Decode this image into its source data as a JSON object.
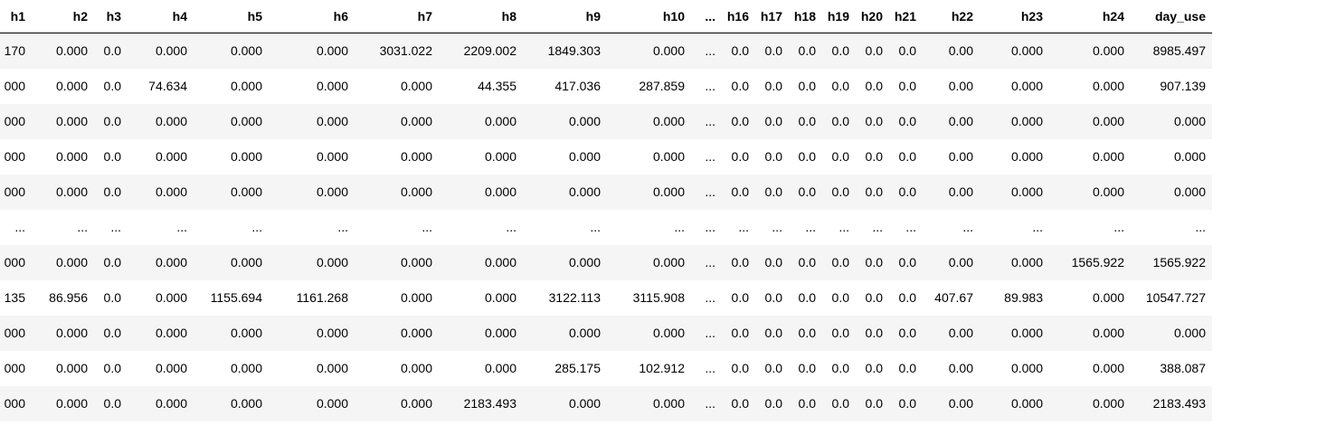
{
  "table": {
    "columns": [
      "h1",
      "h2",
      "h3",
      "h4",
      "h5",
      "h6",
      "h7",
      "h8",
      "h9",
      "h10",
      "...",
      "h16",
      "h17",
      "h18",
      "h19",
      "h20",
      "h21",
      "h22",
      "h23",
      "h24",
      "day_use"
    ],
    "rows": [
      [
        "170",
        "0.000",
        "0.0",
        "0.000",
        "0.000",
        "0.000",
        "3031.022",
        "2209.002",
        "1849.303",
        "0.000",
        "...",
        "0.0",
        "0.0",
        "0.0",
        "0.0",
        "0.0",
        "0.0",
        "0.00",
        "0.000",
        "0.000",
        "8985.497"
      ],
      [
        "000",
        "0.000",
        "0.0",
        "74.634",
        "0.000",
        "0.000",
        "0.000",
        "44.355",
        "417.036",
        "287.859",
        "...",
        "0.0",
        "0.0",
        "0.0",
        "0.0",
        "0.0",
        "0.0",
        "0.00",
        "0.000",
        "0.000",
        "907.139"
      ],
      [
        "000",
        "0.000",
        "0.0",
        "0.000",
        "0.000",
        "0.000",
        "0.000",
        "0.000",
        "0.000",
        "0.000",
        "...",
        "0.0",
        "0.0",
        "0.0",
        "0.0",
        "0.0",
        "0.0",
        "0.00",
        "0.000",
        "0.000",
        "0.000"
      ],
      [
        "000",
        "0.000",
        "0.0",
        "0.000",
        "0.000",
        "0.000",
        "0.000",
        "0.000",
        "0.000",
        "0.000",
        "...",
        "0.0",
        "0.0",
        "0.0",
        "0.0",
        "0.0",
        "0.0",
        "0.00",
        "0.000",
        "0.000",
        "0.000"
      ],
      [
        "000",
        "0.000",
        "0.0",
        "0.000",
        "0.000",
        "0.000",
        "0.000",
        "0.000",
        "0.000",
        "0.000",
        "...",
        "0.0",
        "0.0",
        "0.0",
        "0.0",
        "0.0",
        "0.0",
        "0.00",
        "0.000",
        "0.000",
        "0.000"
      ],
      [
        "...",
        "...",
        "...",
        "...",
        "...",
        "...",
        "...",
        "...",
        "...",
        "...",
        "...",
        "...",
        "...",
        "...",
        "...",
        "...",
        "...",
        "...",
        "...",
        "...",
        "..."
      ],
      [
        "000",
        "0.000",
        "0.0",
        "0.000",
        "0.000",
        "0.000",
        "0.000",
        "0.000",
        "0.000",
        "0.000",
        "...",
        "0.0",
        "0.0",
        "0.0",
        "0.0",
        "0.0",
        "0.0",
        "0.00",
        "0.000",
        "1565.922",
        "1565.922"
      ],
      [
        "135",
        "86.956",
        "0.0",
        "0.000",
        "1155.694",
        "1161.268",
        "0.000",
        "0.000",
        "3122.113",
        "3115.908",
        "...",
        "0.0",
        "0.0",
        "0.0",
        "0.0",
        "0.0",
        "0.0",
        "407.67",
        "89.983",
        "0.000",
        "10547.727"
      ],
      [
        "000",
        "0.000",
        "0.0",
        "0.000",
        "0.000",
        "0.000",
        "0.000",
        "0.000",
        "0.000",
        "0.000",
        "...",
        "0.0",
        "0.0",
        "0.0",
        "0.0",
        "0.0",
        "0.0",
        "0.00",
        "0.000",
        "0.000",
        "0.000"
      ],
      [
        "000",
        "0.000",
        "0.0",
        "0.000",
        "0.000",
        "0.000",
        "0.000",
        "0.000",
        "285.175",
        "102.912",
        "...",
        "0.0",
        "0.0",
        "0.0",
        "0.0",
        "0.0",
        "0.0",
        "0.00",
        "0.000",
        "0.000",
        "388.087"
      ],
      [
        "000",
        "0.000",
        "0.0",
        "0.000",
        "0.000",
        "0.000",
        "0.000",
        "2183.493",
        "0.000",
        "0.000",
        "...",
        "0.0",
        "0.0",
        "0.0",
        "0.0",
        "0.0",
        "0.0",
        "0.00",
        "0.000",
        "0.000",
        "2183.493"
      ]
    ]
  }
}
